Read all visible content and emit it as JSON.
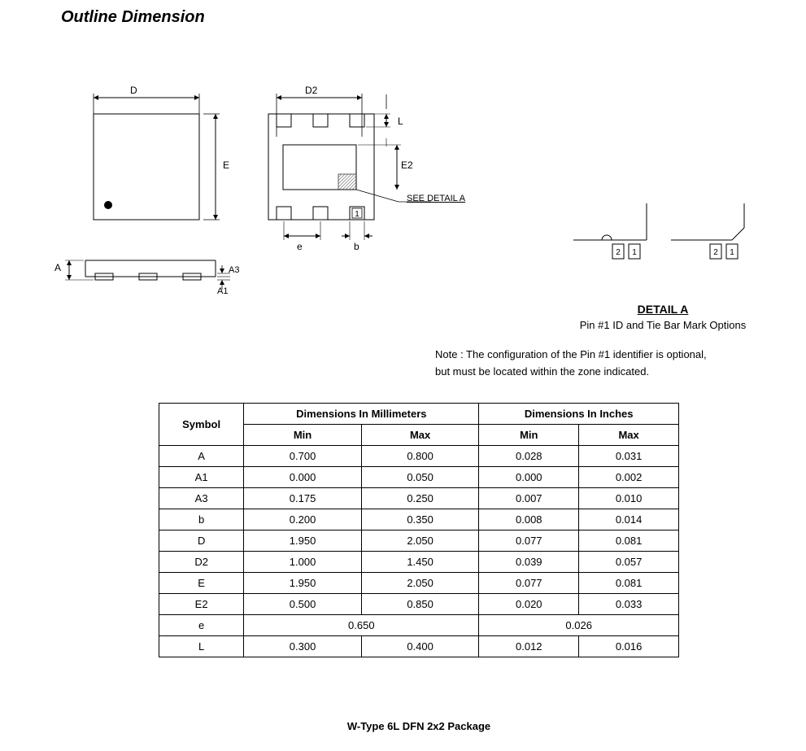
{
  "heading": "Outline Dimension",
  "diagram": {
    "labels": {
      "D": "D",
      "E": "E",
      "D2": "D2",
      "E2": "E2",
      "L": "L",
      "e": "e",
      "b": "b",
      "A": "A",
      "A1": "A1",
      "A3": "A3",
      "pin1": "1",
      "pin2": "2",
      "see_detail": "SEE DETAIL A"
    },
    "colors": {
      "stroke": "#000000",
      "fill": "#ffffff",
      "hatch": "#888888"
    },
    "lineWidth": 1
  },
  "detail": {
    "title": "DETAIL A",
    "subtitle": "Pin #1 ID and Tie Bar Mark Options"
  },
  "note": {
    "line1": "Note : The configuration of the Pin #1 identifier is optional,",
    "line2": "but must be located within the zone indicated."
  },
  "table": {
    "headers": {
      "symbol": "Symbol",
      "mm": "Dimensions In Millimeters",
      "in": "Dimensions In Inches",
      "min": "Min",
      "max": "Max"
    },
    "rows": [
      {
        "sym": "A",
        "mm_min": "0.700",
        "mm_max": "0.800",
        "in_min": "0.028",
        "in_max": "0.031"
      },
      {
        "sym": "A1",
        "mm_min": "0.000",
        "mm_max": "0.050",
        "in_min": "0.000",
        "in_max": "0.002"
      },
      {
        "sym": "A3",
        "mm_min": "0.175",
        "mm_max": "0.250",
        "in_min": "0.007",
        "in_max": "0.010"
      },
      {
        "sym": "b",
        "mm_min": "0.200",
        "mm_max": "0.350",
        "in_min": "0.008",
        "in_max": "0.014"
      },
      {
        "sym": "D",
        "mm_min": "1.950",
        "mm_max": "2.050",
        "in_min": "0.077",
        "in_max": "0.081"
      },
      {
        "sym": "D2",
        "mm_min": "1.000",
        "mm_max": "1.450",
        "in_min": "0.039",
        "in_max": "0.057"
      },
      {
        "sym": "E",
        "mm_min": "1.950",
        "mm_max": "2.050",
        "in_min": "0.077",
        "in_max": "0.081"
      },
      {
        "sym": "E2",
        "mm_min": "0.500",
        "mm_max": "0.850",
        "in_min": "0.020",
        "in_max": "0.033"
      },
      {
        "sym": "e",
        "mm_span": "0.650",
        "in_span": "0.026"
      },
      {
        "sym": "L",
        "mm_min": "0.300",
        "mm_max": "0.400",
        "in_min": "0.012",
        "in_max": "0.016"
      }
    ]
  },
  "caption": "W-Type 6L DFN 2x2 Package"
}
